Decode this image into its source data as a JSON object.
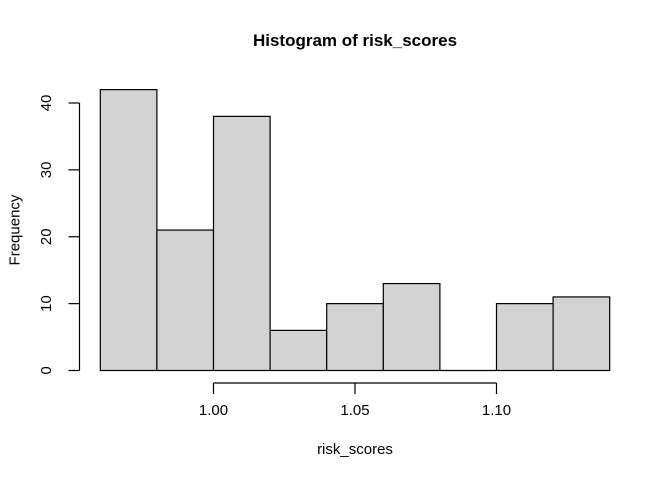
{
  "chart_data": {
    "type": "bar",
    "subtype": "histogram",
    "title": "Histogram of risk_scores",
    "xlabel": "risk_scores",
    "ylabel": "Frequency",
    "bin_breaks": [
      0.96,
      0.98,
      1.0,
      1.02,
      1.04,
      1.06,
      1.08,
      1.1,
      1.12,
      1.14
    ],
    "counts": [
      42,
      21,
      38,
      6,
      10,
      13,
      0,
      10,
      11
    ],
    "x_ticks": {
      "values": [
        1.0,
        1.05,
        1.1
      ],
      "labels": [
        "1.00",
        "1.05",
        "1.10"
      ]
    },
    "y_ticks": {
      "values": [
        0,
        10,
        20,
        30,
        40
      ],
      "labels": [
        "0",
        "10",
        "20",
        "30",
        "40"
      ]
    },
    "xlim": [
      0.96,
      1.14
    ],
    "ylim": [
      0,
      42
    ],
    "grid": false,
    "legend": null,
    "colors": {
      "bar_fill": "#d3d3d3",
      "bar_border": "#000000",
      "axis": "#000000",
      "text": "#000000",
      "background": "#ffffff"
    }
  }
}
